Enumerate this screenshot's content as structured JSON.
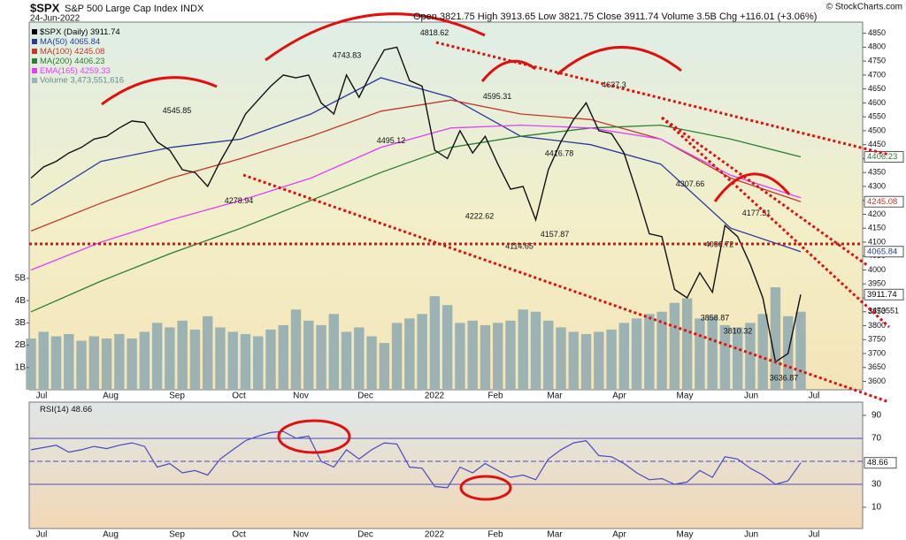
{
  "chart_data": {
    "type": "stock",
    "header": {
      "symbol": "$SPX",
      "name": "S&P 500 Large Cap Index",
      "exchange": "INDX",
      "date": "24-Jun-2022",
      "quote": "Open 3821.75 High 3913.65 Low 3821.75 Close 3911.74 Volume 3.5B Chg +116.01 (+3.06%)",
      "credit": "© StockCharts.com"
    },
    "xticks": [
      "Jul",
      "Aug",
      "Sep",
      "Oct",
      "Nov",
      "Dec",
      "2022",
      "Feb",
      "Mar",
      "Apr",
      "May",
      "Jun",
      "Jul"
    ],
    "ylim": [
      3570,
      4890
    ],
    "yticks": [
      3600,
      3650,
      3700,
      3750,
      3800,
      3850,
      3900,
      3950,
      4000,
      4050,
      4100,
      4150,
      4200,
      4250,
      4300,
      4350,
      4400,
      4450,
      4500,
      4550,
      4600,
      4650,
      4700,
      4750,
      4800,
      4850
    ],
    "price": {
      "name": "$SPX (Daily)",
      "color": "#111111",
      "values": [
        4330,
        4370,
        4390,
        4420,
        4440,
        4470,
        4480,
        4510,
        4535,
        4530,
        4460,
        4430,
        4360,
        4350,
        4300,
        4390,
        4470,
        4560,
        4610,
        4660,
        4700,
        4690,
        4700,
        4600,
        4560,
        4700,
        4620,
        4710,
        4790,
        4800,
        4680,
        4660,
        4430,
        4400,
        4500,
        4420,
        4480,
        4380,
        4290,
        4300,
        4180,
        4360,
        4460,
        4540,
        4600,
        4500,
        4490,
        4420,
        4280,
        4130,
        4120,
        3930,
        3900,
        3990,
        3920,
        4160,
        4120,
        4020,
        3900,
        3670,
        3700,
        3911.74
      ]
    },
    "moving_averages": [
      {
        "name": "MA(50)",
        "color": "#2b3a9a",
        "values": [
          4233,
          4390,
          4440,
          4470,
          4560,
          4690,
          4620,
          4480,
          4450,
          4380,
          4150,
          4065.84
        ]
      },
      {
        "name": "MA(100)",
        "color": "#c0392b",
        "values": [
          4140,
          4240,
          4330,
          4400,
          4480,
          4570,
          4610,
          4560,
          4540,
          4470,
          4330,
          4245.08
        ]
      },
      {
        "name": "MA(200)",
        "color": "#2e7d32",
        "values": [
          3850,
          3960,
          4060,
          4150,
          4250,
          4350,
          4440,
          4480,
          4510,
          4520,
          4470,
          4406.23
        ]
      },
      {
        "name": "EMA(165)",
        "color": "#e040fb",
        "values": [
          4000,
          4100,
          4180,
          4250,
          4330,
          4440,
          4510,
          4520,
          4510,
          4470,
          4340,
          4259.33
        ]
      }
    ],
    "annotations": [
      4545.85,
      4278.94,
      4743.83,
      4495.12,
      4818.62,
      4595.31,
      4222.62,
      4114.65,
      4157.87,
      4416.78,
      4637.3,
      4307.66,
      4090.72,
      3858.87,
      3810.32,
      4177.51,
      3636.87
    ],
    "volume": {
      "legend": "Volume 3,473,551,616",
      "right_label": "3473551",
      "color": "#9db3b3",
      "ylim": [
        0,
        16.5
      ],
      "yticks": [
        {
          "value": 1,
          "label": "1B"
        },
        {
          "value": 2,
          "label": "2B"
        },
        {
          "value": 3,
          "label": "3B"
        },
        {
          "value": 4,
          "label": "4B"
        },
        {
          "value": 5,
          "label": "5B"
        }
      ],
      "values": [
        2.3,
        2.6,
        2.4,
        2.5,
        2.2,
        2.4,
        2.3,
        2.5,
        2.3,
        2.6,
        3.0,
        2.8,
        3.1,
        2.7,
        3.3,
        2.8,
        2.6,
        2.5,
        2.4,
        2.7,
        2.9,
        3.6,
        3.1,
        2.9,
        3.4,
        2.6,
        2.8,
        2.4,
        2.1,
        3.0,
        3.2,
        3.4,
        4.2,
        3.8,
        3.0,
        3.1,
        2.9,
        3.0,
        3.1,
        3.6,
        3.5,
        3.1,
        2.8,
        2.6,
        2.5,
        2.6,
        2.7,
        3.0,
        3.2,
        3.4,
        3.5,
        3.9,
        4.1,
        3.2,
        3.3,
        2.9,
        2.8,
        3.0,
        3.4,
        4.6,
        3.3,
        3.5
      ]
    },
    "rsi": {
      "label": "RSI(14)",
      "color": "#4a4ac0",
      "ylim": [
        -8.5,
        101.5
      ],
      "yticks": [
        10,
        30,
        50,
        70,
        90
      ],
      "values": [
        60,
        62,
        64,
        58,
        60,
        63,
        61,
        64,
        66,
        63,
        45,
        48,
        40,
        42,
        38,
        52,
        60,
        68,
        72,
        75,
        76,
        70,
        72,
        50,
        45,
        60,
        52,
        60,
        66,
        65,
        45,
        44,
        28,
        27,
        45,
        40,
        48,
        42,
        36,
        38,
        34,
        52,
        60,
        66,
        68,
        55,
        54,
        48,
        40,
        34,
        35,
        30,
        32,
        42,
        36,
        54,
        52,
        44,
        38,
        30,
        33,
        48.66
      ]
    }
  }
}
